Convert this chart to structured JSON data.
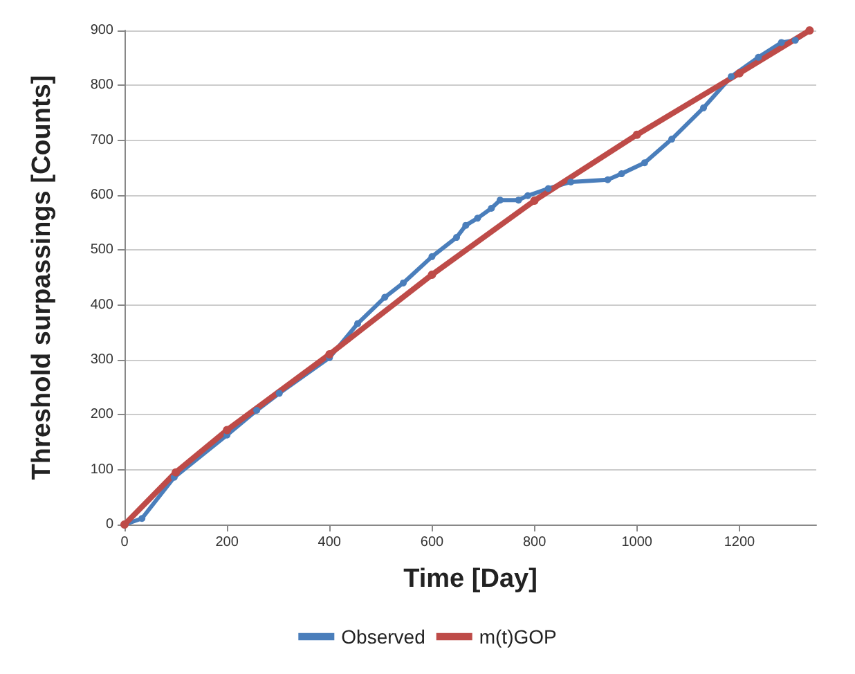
{
  "chart_data": {
    "type": "line",
    "xlabel": "Time [Day]",
    "ylabel": "Threshold surpassings [Counts]",
    "xlim": [
      0,
      1350
    ],
    "xticks": [
      0,
      200,
      400,
      600,
      800,
      1000,
      1200
    ],
    "ylim": [
      0,
      900
    ],
    "yticks": [
      0,
      100,
      200,
      300,
      400,
      500,
      600,
      700,
      800,
      900
    ],
    "grid": "y",
    "legend": "bottom",
    "marker": "circle",
    "line_style": "solid",
    "series": [
      {
        "name": "Observed",
        "color": "#4a7ebb",
        "x": [
          0,
          34,
          97,
          200,
          258,
          302,
          400,
          455,
          508,
          544,
          600,
          648,
          666,
          689,
          716,
          733,
          769,
          787,
          827,
          871,
          943,
          970,
          1015,
          1068,
          1130,
          1184,
          1237,
          1282,
          1309,
          1337
        ],
        "values": [
          0,
          11,
          86,
          163,
          208,
          239,
          304,
          366,
          414,
          440,
          488,
          523,
          545,
          558,
          576,
          591,
          591,
          599,
          612,
          624,
          628,
          639,
          659,
          702,
          759,
          816,
          851,
          878,
          882,
          900
        ]
      },
      {
        "name": "m(t)GOP",
        "color": "#be4b48",
        "x": [
          0,
          100,
          200,
          400,
          600,
          800,
          1000,
          1200,
          1337
        ],
        "values": [
          0,
          95,
          172,
          310,
          455,
          590,
          710,
          822,
          900
        ]
      }
    ]
  }
}
